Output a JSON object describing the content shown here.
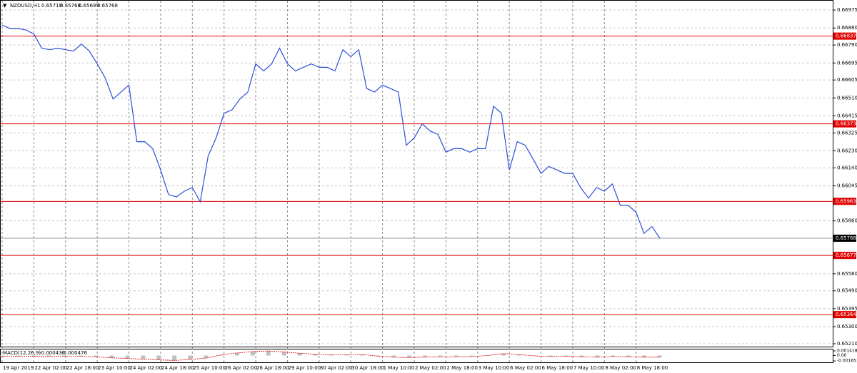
{
  "chart_data": [
    {
      "type": "line",
      "symbol": "NZDUSD,H1",
      "ohlc": [
        0.65719,
        0.65768,
        0.65699,
        0.65768
      ],
      "ylim": [
        0.65191,
        0.67028
      ],
      "yticks": [
        0.66975,
        {
          "value": 0.6688,
          "label": "0.66880"
        },
        {
          "value": 0.6679,
          "label": "0.66790"
        },
        0.66695,
        0.66605,
        {
          "value": 0.6651,
          "label": "0.66510"
        },
        0.66415,
        0.66325,
        {
          "value": 0.6623,
          "label": "0.66230"
        },
        {
          "value": 0.6614,
          "label": "0.66140"
        },
        0.66045,
        {
          "value": 0.6586,
          "label": "0.65860"
        },
        {
          "value": 0.6558,
          "label": "0.65580"
        },
        {
          "value": 0.6549,
          "label": "0.65490"
        },
        0.65395,
        {
          "value": 0.653,
          "label": "0.65300"
        },
        {
          "value": 0.6521,
          "label": "0.65210"
        }
      ],
      "grid": true,
      "categories": [
        "19 Apr 2019",
        null,
        null,
        null,
        "22 Apr 02:00",
        null,
        null,
        null,
        "22 Apr 18:00",
        null,
        null,
        null,
        "23 Apr 10:00",
        null,
        null,
        null,
        "24 Apr 02:00",
        null,
        null,
        null,
        "24 Apr 18:00",
        null,
        null,
        null,
        "25 Apr 10:00",
        null,
        null,
        null,
        "26 Apr 02:00",
        null,
        null,
        null,
        "26 Apr 18:00",
        null,
        null,
        null,
        "29 Apr 10:00",
        null,
        null,
        null,
        "30 Apr 02:00",
        null,
        null,
        null,
        "30 Apr 18:00",
        null,
        null,
        null,
        "1 May 10:00",
        null,
        null,
        null,
        "2 May 02:00",
        null,
        null,
        null,
        "2 May 18:00",
        null,
        null,
        null,
        "3 May 10:00",
        null,
        null,
        null,
        "6 May 02:00",
        null,
        null,
        null,
        "6 May 18:00",
        null,
        null,
        null,
        "7 May 10:00",
        null,
        null,
        null,
        "8 May 02:00",
        null,
        null,
        null,
        "8 May 18:00",
        null,
        null,
        null
      ],
      "series": [
        {
          "name": "NZDUSD",
          "color": "#2b4fd9",
          "values": [
            0.66896,
            0.66877,
            0.66877,
            0.6687,
            0.66848,
            0.66773,
            0.66765,
            0.66773,
            0.66765,
            0.66758,
            0.66795,
            0.66758,
            0.6669,
            0.66616,
            0.66504,
            0.66541,
            0.66578,
            0.66279,
            0.66279,
            0.66242,
            0.66129,
            0.65999,
            0.65987,
            0.66017,
            0.66036,
            0.65961,
            0.66204,
            0.66298,
            0.66429,
            0.66447,
            0.66504,
            0.66541,
            0.6669,
            0.66653,
            0.6669,
            0.66773,
            0.6669,
            0.66653,
            0.66672,
            0.6669,
            0.66672,
            0.66672,
            0.66653,
            0.66765,
            0.66728,
            0.66765,
            0.6656,
            0.66541,
            0.66578,
            0.6656,
            0.66541,
            0.6626,
            0.66298,
            0.66373,
            0.66335,
            0.66317,
            0.66223,
            0.66242,
            0.66242,
            0.66223,
            0.66242,
            0.66242,
            0.66466,
            0.66429,
            0.66129,
            0.66279,
            0.6626,
            0.66186,
            0.66111,
            0.66148,
            0.66129,
            0.66111,
            0.66111,
            0.66036,
            0.6598,
            0.66036,
            0.66017,
            0.66055,
            0.65942,
            0.65942,
            0.65905,
            0.65793,
            0.6583,
            0.65768
          ]
        }
      ],
      "levels": [
        {
          "value": 0.66837,
          "color": "#e00000"
        },
        {
          "value": 0.66373,
          "color": "#e00000"
        },
        {
          "value": 0.65963,
          "color": "#e00000"
        },
        {
          "value": 0.65677,
          "color": "#e00000"
        },
        {
          "value": 0.65364,
          "color": "#e00000"
        }
      ],
      "current_price": 0.65768
    },
    {
      "type": "bar",
      "title": "MACD(12,26,9)",
      "macd_values": [
        {
          "value": -0.00043,
          "label": "-0.000430"
        },
        {
          "value": -0.000476,
          "label": "-0.000476"
        }
      ],
      "ylim": [
        -0.00207,
        0.00208
      ],
      "yticks": [
        0.001418,
        {
          "value": 0,
          "label": "0.00"
        },
        -0.001651
      ],
      "color": "#c0c0c0",
      "signal_color": "#e00000",
      "categories": [
        null,
        null,
        null,
        null,
        null,
        null,
        null,
        null,
        null,
        null,
        null,
        null,
        null,
        null,
        null,
        null,
        null,
        null,
        null,
        null,
        null,
        null,
        null,
        null,
        null,
        null,
        null,
        null,
        null,
        null,
        null,
        null,
        null,
        null,
        null,
        null,
        null,
        null,
        null,
        null,
        null,
        null,
        null
      ],
      "values": [
        -0.0002,
        -0.0003,
        -0.0002,
        -0.0003,
        -0.0002,
        -0.0002,
        -0.0004,
        -0.0007,
        -0.0009,
        -0.0011,
        -0.0013,
        -0.0015,
        -0.0012,
        -0.0008,
        0.0002,
        0.0008,
        0.0012,
        0.0014,
        0.0011,
        0.0007,
        0.0004,
        0.0002,
        0.0002,
        0.0003,
        -0.0002,
        -0.0005,
        -0.0006,
        -0.0005,
        -0.0004,
        -0.0004,
        -0.0003,
        0,
        0.0006,
        0.0003,
        -0.0001,
        -0.0003,
        -0.0002,
        -0.0004,
        -0.0005,
        -0.0003,
        -0.0004,
        -0.0005,
        -0.0005
      ]
    }
  ]
}
